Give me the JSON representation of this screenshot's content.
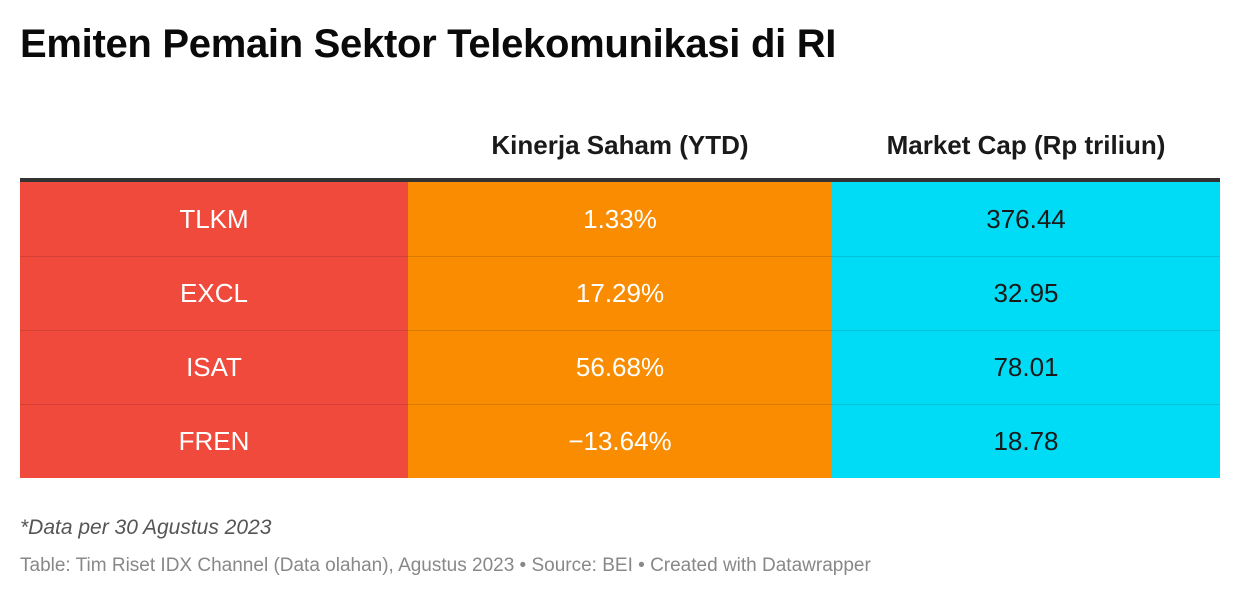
{
  "title": "Emiten Pemain Sektor Telekomunikasi di RI",
  "colors": {
    "code_column": "#ef4a3c",
    "ytd_column": "#f98c00",
    "market_cap_column": "#00dcf5"
  },
  "chart_data": {
    "type": "table",
    "title": "Emiten Pemain Sektor Telekomunikasi di RI",
    "columns": [
      "",
      "Kinerja Saham (YTD)",
      "Market Cap (Rp triliun)"
    ],
    "rows": [
      [
        "TLKM",
        "1.33%",
        "376.44"
      ],
      [
        "EXCL",
        "17.29%",
        "32.95"
      ],
      [
        "ISAT",
        "56.68%",
        "78.01"
      ],
      [
        "FREN",
        "−13.64%",
        "18.78"
      ]
    ]
  },
  "note": "*Data per 30 Agustus 2023",
  "footer": "Table: Tim Riset IDX Channel (Data olahan), Agustus 2023 • Source: BEI • Created with Datawrapper"
}
